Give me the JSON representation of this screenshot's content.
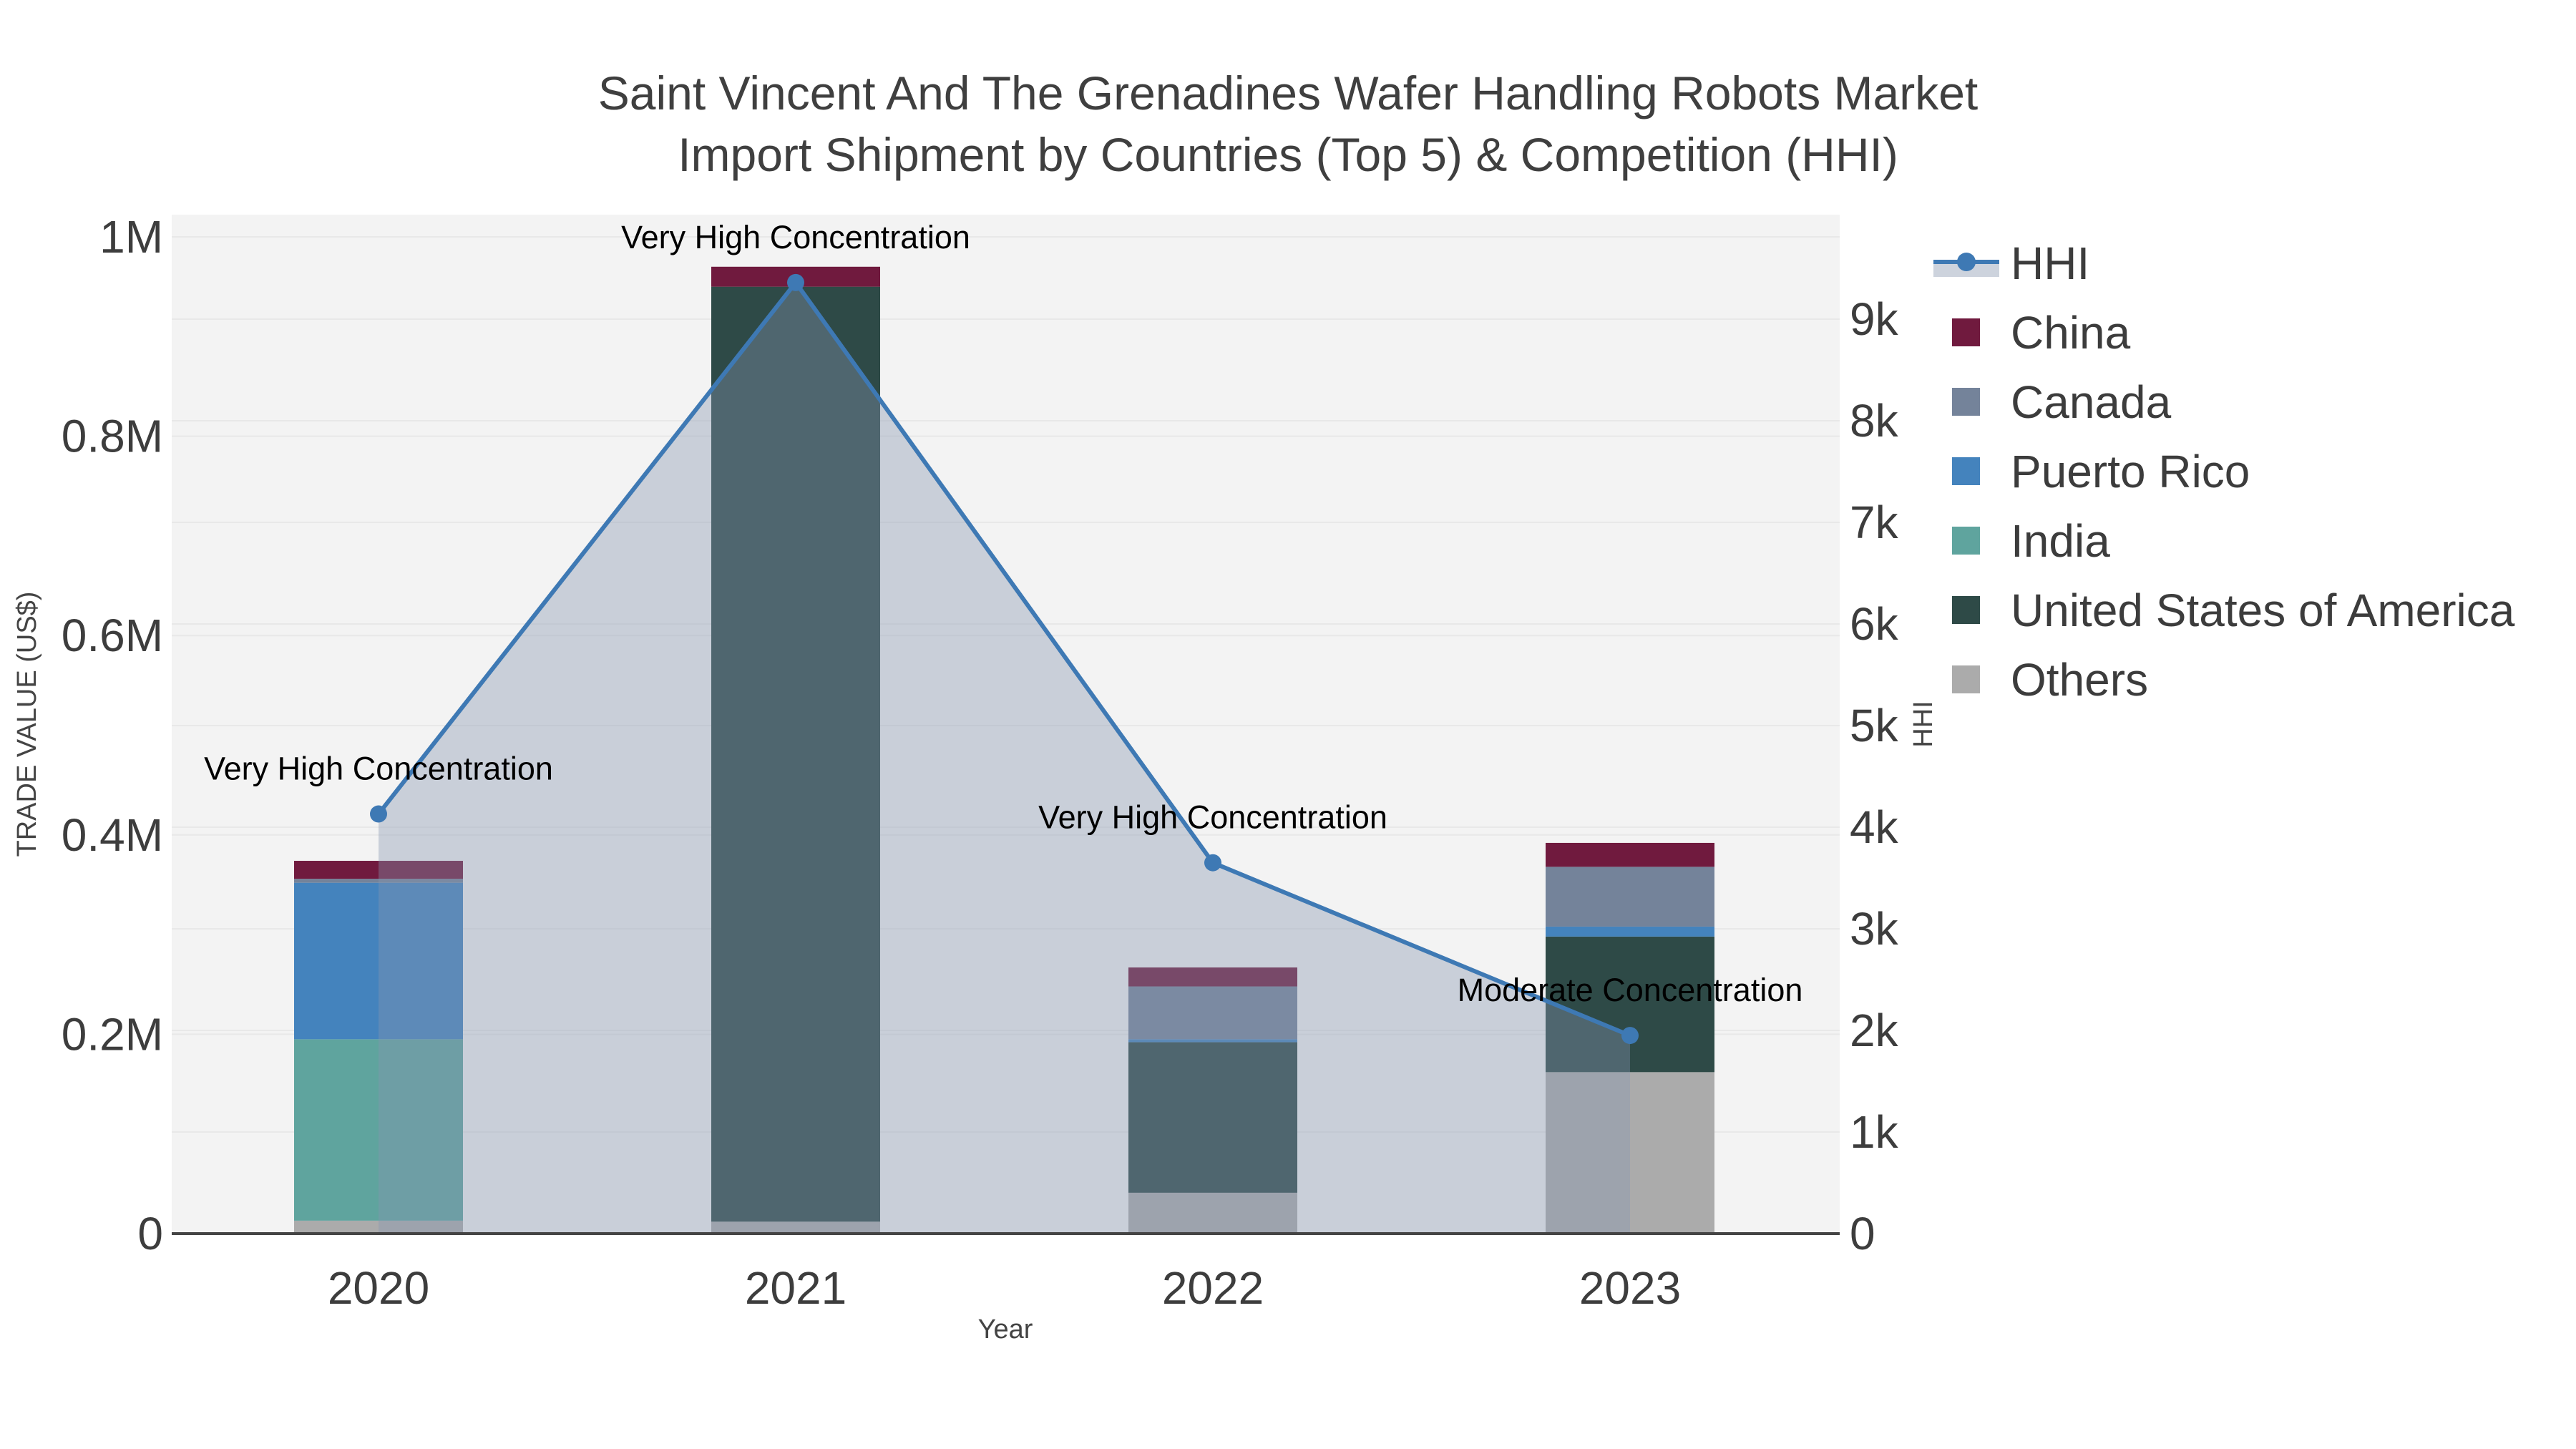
{
  "title": {
    "line1": "Saint Vincent And The Grenadines Wafer Handling Robots Market",
    "line2": "Import Shipment by Countries (Top 5) & Competition (HHI)"
  },
  "colors": {
    "paper_bg": "#ffffff",
    "plot_bg": "#f3f3f3",
    "gridline": "#e8e8e8",
    "axis_line": "#444444",
    "tick_text": "#3d3d3d",
    "axis_title_text": "#444444",
    "annotation_text": "#000000",
    "legend_text": "#3c3c3c"
  },
  "chart_data": {
    "type": "bar+line (stacked bars, dual y-axis)",
    "categories": [
      "2020",
      "2021",
      "2022",
      "2023"
    ],
    "series": [
      {
        "name": "Others",
        "color": "#ababab",
        "values": [
          13000,
          12000,
          41000,
          162000
        ]
      },
      {
        "name": "United States of America",
        "color": "#2e4a47",
        "values": [
          0,
          938000,
          151000,
          136000
        ]
      },
      {
        "name": "India",
        "color": "#5fa49e",
        "values": [
          182000,
          0,
          0,
          0
        ]
      },
      {
        "name": "Puerto Rico",
        "color": "#4483bd",
        "values": [
          157000,
          0,
          3000,
          10000
        ]
      },
      {
        "name": "Canada",
        "color": "#74839a",
        "values": [
          4000,
          0,
          53000,
          60000
        ]
      },
      {
        "name": "China",
        "color": "#701a3e",
        "values": [
          18000,
          20000,
          19000,
          24000
        ]
      }
    ],
    "stack_totals": [
      374000,
      970000,
      267000,
      392000
    ],
    "hhi": {
      "name": "HHI",
      "color": "#3e79b4",
      "fill": "rgba(135,150,175,0.38)",
      "values": [
        4130,
        9360,
        3650,
        1950
      ]
    },
    "annotations": [
      {
        "category": "2020",
        "text": "Very High Concentration"
      },
      {
        "category": "2021",
        "text": "Very High Concentration"
      },
      {
        "category": "2022",
        "text": "Very High Concentration"
      },
      {
        "category": "2023",
        "text": "Moderate Concentration"
      }
    ],
    "y_left": {
      "title": "TRADE VALUE (US$)",
      "ticks": [
        "0",
        "0.2M",
        "0.4M",
        "0.6M",
        "0.8M",
        "1M"
      ],
      "tick_values": [
        0,
        200000,
        400000,
        600000,
        800000,
        1000000
      ],
      "range": [
        0,
        1023000
      ]
    },
    "y_right": {
      "title": "HHI",
      "ticks": [
        "0",
        "1k",
        "2k",
        "3k",
        "4k",
        "5k",
        "6k",
        "7k",
        "8k",
        "9k"
      ],
      "tick_values": [
        0,
        1000,
        2000,
        3000,
        4000,
        5000,
        6000,
        7000,
        8000,
        9000
      ],
      "range": [
        0,
        10028
      ]
    },
    "x_axis": {
      "title": "Year"
    },
    "legend": {
      "items": [
        "HHI",
        "China",
        "Canada",
        "Puerto Rico",
        "India",
        "United States of America",
        "Others"
      ],
      "position": "right"
    },
    "grid": "horizontal gridlines for both y axes"
  }
}
